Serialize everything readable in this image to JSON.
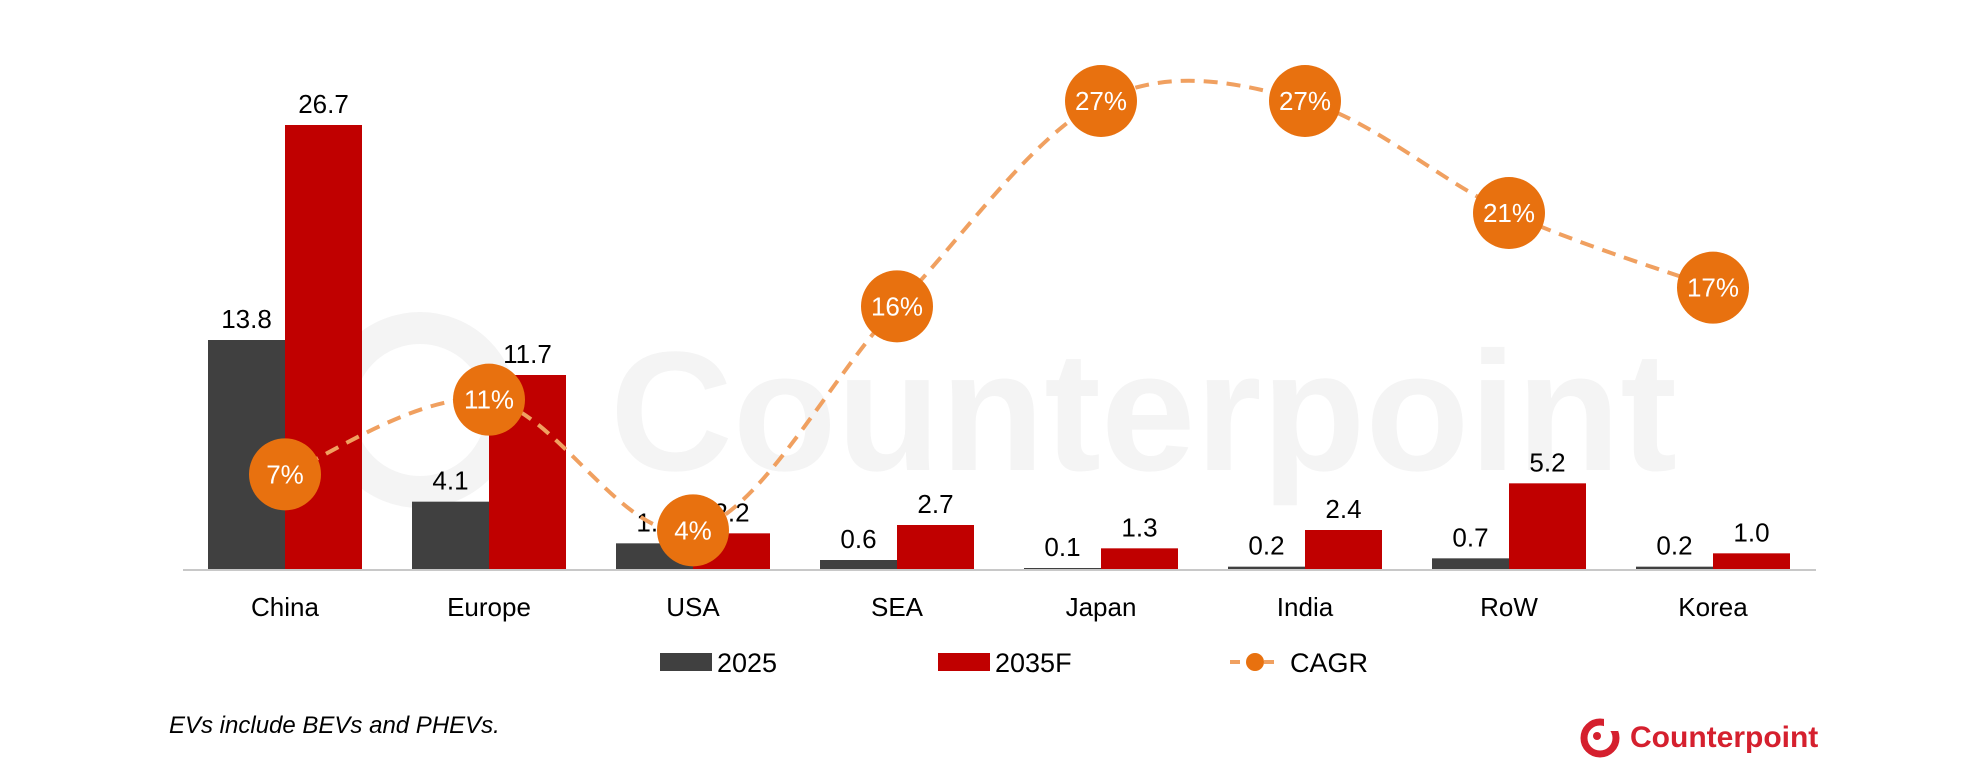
{
  "chart_data": {
    "type": "bar",
    "categories": [
      "China",
      "Europe",
      "USA",
      "SEA",
      "Japan",
      "India",
      "RoW",
      "Korea"
    ],
    "series": [
      {
        "name": "2025",
        "type": "bar",
        "color": "#404040",
        "values": [
          13.8,
          4.1,
          1.6,
          0.6,
          0.1,
          0.2,
          0.7,
          0.2
        ],
        "labels": [
          "13.8",
          "4.1",
          "1.6",
          "0.6",
          "0.1",
          "0.2",
          "0.7",
          "0.2"
        ]
      },
      {
        "name": "2035F",
        "type": "bar",
        "color": "#c00000",
        "values": [
          26.7,
          11.7,
          2.2,
          2.7,
          1.3,
          2.4,
          5.2,
          1.0
        ],
        "labels": [
          "26.7",
          "11.7",
          "2.2",
          "2.7",
          "1.3",
          "2.4",
          "5.2",
          "1.0"
        ]
      },
      {
        "name": "CAGR",
        "type": "line",
        "color": "#e8710f",
        "style": "dashed-smooth",
        "values": [
          7,
          11,
          4,
          16,
          27,
          27,
          21,
          17
        ],
        "labels": [
          "7%",
          "11%",
          "4%",
          "16%",
          "27%",
          "27%",
          "21%",
          "17%"
        ]
      }
    ],
    "ylim": [
      0,
      30
    ],
    "y2lim": [
      0,
      30
    ],
    "legend_position": "bottom",
    "grid": false
  },
  "footnote": "EVs include BEVs and PHEVs.",
  "brand": {
    "name": "Counterpoint",
    "watermark": "Counterpoint",
    "color": "#d5202e"
  }
}
